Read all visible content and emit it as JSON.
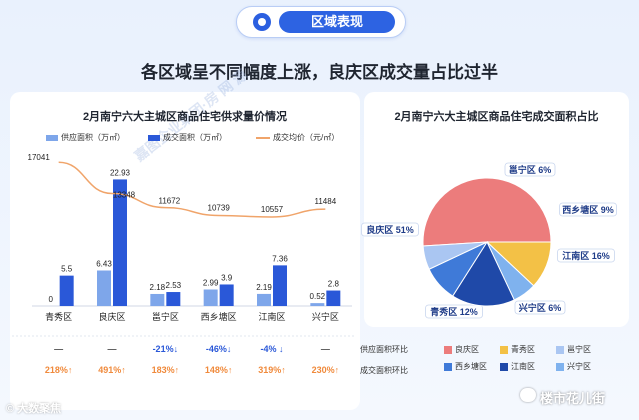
{
  "banner": {
    "title": "区域表现"
  },
  "headline": "各区域呈不同幅度上涨，良庆区成交量占比过半",
  "credit": "© 大数聚焦",
  "account": "楼市花儿街",
  "watermark": "嘉图企业集团·房 网 源",
  "chart_data": [
    {
      "type": "bar",
      "title": "2月南宁六大主城区商品住宅供求量价情况",
      "categories": [
        "青秀区",
        "良庆区",
        "邕宁区",
        "西乡塘区",
        "江南区",
        "兴宁区"
      ],
      "series": [
        {
          "name": "供应面积（万㎡）",
          "values": [
            0,
            6.43,
            2.18,
            2.99,
            2.19,
            0.52
          ],
          "color": "#7ea6ea"
        },
        {
          "name": "成交面积（万㎡）",
          "values": [
            5.5,
            22.93,
            2.53,
            3.9,
            7.36,
            2.8
          ],
          "color": "#2a58d8"
        },
        {
          "name": "成交均价（元/㎡）",
          "type": "line",
          "values": [
            17041,
            13348,
            11672,
            10739,
            10557,
            11484
          ],
          "color": "#f0a46a"
        }
      ],
      "value_labels": {
        "supply": [
          "0",
          "6.43",
          "2.18",
          "2.99",
          "2.19",
          "0.52"
        ],
        "deal": [
          "5.5",
          "22.93",
          "2.53",
          "3.9",
          "7.36",
          "2.8"
        ],
        "price": [
          "17041",
          "13348",
          "11672",
          "10739",
          "10557",
          "11484"
        ]
      },
      "table_rows": [
        {
          "label": "供应面积环比",
          "values": [
            "—",
            "—",
            "-21%↓",
            "-46%↓",
            "-4% ↓",
            "—"
          ],
          "color": "#2a58d8"
        },
        {
          "label": "成交面积环比",
          "values": [
            "218%↑",
            "491%↑",
            "183%↑",
            "148%↑",
            "319%↑",
            "230%↑"
          ],
          "color": "#f08a3c"
        }
      ],
      "ylim_bars": [
        0,
        25
      ],
      "ylim_price": [
        0,
        18500
      ],
      "legend_position": "top"
    },
    {
      "type": "pie",
      "title": "2月南宁六大主城区商品住宅成交面积占比",
      "slices": [
        {
          "name": "良庆区",
          "label": "良庆区 51%",
          "value": 51,
          "color": "#ec7c7c"
        },
        {
          "name": "青秀区",
          "label": "青秀区 12%",
          "value": 12,
          "color": "#f3c146"
        },
        {
          "name": "兴宁区",
          "label": "兴宁区 6%",
          "value": 6,
          "color": "#7fb2ee"
        },
        {
          "name": "江南区",
          "label": "江南区 16%",
          "value": 16,
          "color": "#1f49a8"
        },
        {
          "name": "西乡塘区",
          "label": "西乡塘区 9%",
          "value": 9,
          "color": "#3f7ad8"
        },
        {
          "name": "邕宁区",
          "label": "邕宁区 6%",
          "value": 6,
          "color": "#aac6f2"
        }
      ],
      "legend": [
        "良庆区",
        "青秀区",
        "邕宁区",
        "西乡塘区",
        "江南区",
        "兴宁区"
      ],
      "legend_position": "bottom"
    }
  ]
}
